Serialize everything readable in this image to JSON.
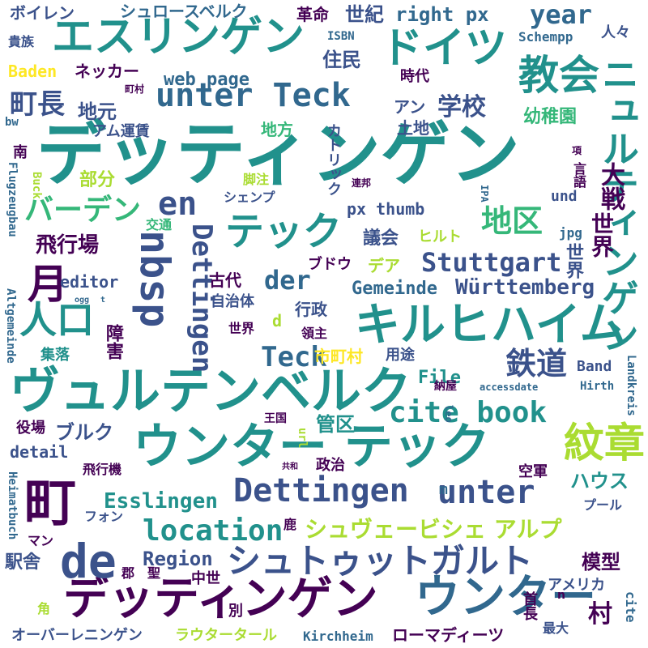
{
  "palette": {
    "deep": "#440154",
    "navy": "#3b528b",
    "blue": "#31688e",
    "teal": "#21918c",
    "green": "#35b779",
    "lime": "#5ec962",
    "yellow": "#aadc32",
    "gold": "#fde725",
    "indigo": "#472d7b"
  },
  "words": [
    {
      "text": "デッティンゲン",
      "color": "#21918c"
    },
    {
      "text": "ヴュルテンベルク",
      "color": "#21918c"
    },
    {
      "text": "エスリンゲン",
      "color": "#21918c"
    },
    {
      "text": "ドイツ",
      "color": "#21918c"
    },
    {
      "text": "教会",
      "color": "#21918c"
    },
    {
      "text": "unter Teck",
      "color": "#31688e"
    },
    {
      "text": "キルヒハイム",
      "color": "#21918c"
    },
    {
      "text": "ウンター テック",
      "color": "#21918c"
    },
    {
      "text": "デッティンゲン",
      "color": "#440154"
    },
    {
      "text": "ウンター",
      "color": "#31688e"
    },
    {
      "text": "町",
      "color": "#440154"
    },
    {
      "text": "de",
      "color": "#3b528b"
    },
    {
      "text": "Dettingen",
      "color": "#3b528b"
    },
    {
      "text": "unter",
      "color": "#3b528b"
    },
    {
      "text": "シュトゥットガルト",
      "color": "#3b528b"
    },
    {
      "text": "紋章",
      "color": "#aadc32"
    },
    {
      "text": "nbsp",
      "color": "#3b528b"
    },
    {
      "text": "ニュルティンゲン",
      "color": "#21918c"
    },
    {
      "text": "テック",
      "color": "#21918c"
    },
    {
      "text": "人口",
      "color": "#21918c"
    },
    {
      "text": "en",
      "color": "#3b528b"
    },
    {
      "text": "Stuttgart",
      "color": "#3b528b"
    },
    {
      "text": "cite book",
      "color": "#21918c"
    },
    {
      "text": "location",
      "color": "#21918c"
    },
    {
      "text": "シュヴェービシェ アルプ",
      "color": "#aadc32"
    },
    {
      "text": "Dettingen",
      "color": "#3b528b"
    },
    {
      "text": "鉄道",
      "color": "#3b528b"
    },
    {
      "text": "地区",
      "color": "#35b779"
    },
    {
      "text": "月",
      "color": "#440154"
    },
    {
      "text": "バーデン",
      "color": "#35b779"
    },
    {
      "text": "Teck",
      "color": "#31688e"
    },
    {
      "text": "der",
      "color": "#31688e"
    },
    {
      "text": "シュロースベルク",
      "color": "#31688e"
    },
    {
      "text": "住民",
      "color": "#3b528b"
    },
    {
      "text": "世紀",
      "color": "#3b528b"
    },
    {
      "text": "right px",
      "color": "#31688e"
    },
    {
      "text": "year",
      "color": "#31688e"
    },
    {
      "text": "Esslingen",
      "color": "#21918c"
    },
    {
      "text": "Gemeinde",
      "color": "#31688e"
    },
    {
      "text": "Württemberg",
      "color": "#3b528b"
    },
    {
      "text": "Region",
      "color": "#3b528b"
    },
    {
      "text": "web page",
      "color": "#31688e"
    },
    {
      "text": "町長",
      "color": "#3b528b"
    },
    {
      "text": "学校",
      "color": "#3b528b"
    },
    {
      "text": "世界",
      "color": "#440154"
    },
    {
      "text": "大戦",
      "color": "#440154"
    },
    {
      "text": "ボイレン",
      "color": "#3b528b"
    },
    {
      "text": "ネッカー",
      "color": "#440154"
    },
    {
      "text": "革命",
      "color": "#440154"
    },
    {
      "text": "ISBN",
      "color": "#31688e"
    },
    {
      "text": "Schempp",
      "color": "#31688e"
    },
    {
      "text": "人々",
      "color": "#3b528b"
    },
    {
      "text": "時代",
      "color": "#440154"
    },
    {
      "text": "貴族",
      "color": "#3b528b"
    },
    {
      "text": "Baden",
      "color": "#fde725"
    },
    {
      "text": "町村",
      "color": "#440154"
    },
    {
      "text": "地元",
      "color": "#3b528b"
    },
    {
      "text": "アム運賃",
      "color": "#3b528b"
    },
    {
      "text": "アン",
      "color": "#3b528b"
    },
    {
      "text": "幼稚園",
      "color": "#35b779"
    },
    {
      "text": "bw",
      "color": "#31688e"
    },
    {
      "text": "地方",
      "color": "#35b779"
    },
    {
      "text": "土地",
      "color": "#3b528b"
    },
    {
      "text": "南",
      "color": "#440154"
    },
    {
      "text": "カトリック",
      "color": "#3b528b"
    },
    {
      "text": "項",
      "color": "#440154"
    },
    {
      "text": "言語",
      "color": "#440154"
    },
    {
      "text": "部分",
      "color": "#aadc32"
    },
    {
      "text": "脚注",
      "color": "#aadc32"
    },
    {
      "text": "連邦",
      "color": "#440154"
    },
    {
      "text": "Flugzeugbau",
      "color": "#31688e"
    },
    {
      "text": "Buck",
      "color": "#aadc32"
    },
    {
      "text": "IPA",
      "color": "#31688e"
    },
    {
      "text": "シェンプ",
      "color": "#3b528b"
    },
    {
      "text": "px thumb",
      "color": "#3b528b"
    },
    {
      "text": "und",
      "color": "#3b528b"
    },
    {
      "text": "交通",
      "color": "#35b779"
    },
    {
      "text": "議会",
      "color": "#3b528b"
    },
    {
      "text": "ヒルト",
      "color": "#aadc32"
    },
    {
      "text": "jpg",
      "color": "#31688e"
    },
    {
      "text": "飛行場",
      "color": "#440154"
    },
    {
      "text": "デア",
      "color": "#aadc32"
    },
    {
      "text": "ブドウ",
      "color": "#440154"
    },
    {
      "text": "世界",
      "color": "#3b528b"
    },
    {
      "text": "editor",
      "color": "#3b528b"
    },
    {
      "text": "古代",
      "color": "#440154"
    },
    {
      "text": "自治体",
      "color": "#3b528b"
    },
    {
      "text": "Altgemeinde",
      "color": "#31688e"
    },
    {
      "text": "ogg",
      "color": "#31688e"
    },
    {
      "text": "t",
      "color": "#31688e"
    },
    {
      "text": "行政",
      "color": "#3b528b"
    },
    {
      "text": "d",
      "color": "#aadc32"
    },
    {
      "text": "世界",
      "color": "#440154"
    },
    {
      "text": "領主",
      "color": "#440154"
    },
    {
      "text": "障害",
      "color": "#440154"
    },
    {
      "text": "集落",
      "color": "#21918c"
    },
    {
      "text": "市町村",
      "color": "#fde725"
    },
    {
      "text": "用途",
      "color": "#3b528b"
    },
    {
      "text": "File",
      "color": "#21918c"
    },
    {
      "text": "Band",
      "color": "#3b528b"
    },
    {
      "text": "納屋",
      "color": "#440154"
    },
    {
      "text": "accessdate",
      "color": "#31688e"
    },
    {
      "text": "Hirth",
      "color": "#31688e"
    },
    {
      "text": "Landkreis",
      "color": "#31688e"
    },
    {
      "text": "役場",
      "color": "#440154"
    },
    {
      "text": "ブルク",
      "color": "#3b528b"
    },
    {
      "text": "王国",
      "color": "#440154"
    },
    {
      "text": "leo",
      "color": "#31688e"
    },
    {
      "text": "管区",
      "color": "#21918c"
    },
    {
      "text": "detail",
      "color": "#3b528b"
    },
    {
      "text": "url",
      "color": "#aadc32"
    },
    {
      "text": "飛行機",
      "color": "#440154"
    },
    {
      "text": "共和",
      "color": "#440154"
    },
    {
      "text": "政治",
      "color": "#440154"
    },
    {
      "text": "空軍",
      "color": "#440154"
    },
    {
      "text": "Heimatbuch",
      "color": "#31688e"
    },
    {
      "text": "フォン",
      "color": "#3b528b"
    },
    {
      "text": "m",
      "color": "#31688e"
    },
    {
      "text": "ハウス",
      "color": "#21918c"
    },
    {
      "text": "プール",
      "color": "#3b528b"
    },
    {
      "text": "マン",
      "color": "#440154"
    },
    {
      "text": "鹿",
      "color": "#440154"
    },
    {
      "text": "駅舎",
      "color": "#3b528b"
    },
    {
      "text": "模型",
      "color": "#440154"
    },
    {
      "text": "郡",
      "color": "#440154"
    },
    {
      "text": "聖",
      "color": "#440154"
    },
    {
      "text": "中世",
      "color": "#440154"
    },
    {
      "text": "アメリカ",
      "color": "#3b528b"
    },
    {
      "text": "角",
      "color": "#aadc32"
    },
    {
      "text": "別",
      "color": "#440154"
    },
    {
      "text": "首長",
      "color": "#440154"
    },
    {
      "text": "n",
      "color": "#440154"
    },
    {
      "text": "村",
      "color": "#440154"
    },
    {
      "text": "cite",
      "color": "#31688e"
    },
    {
      "text": "最大",
      "color": "#3b528b"
    },
    {
      "text": "オーバーレニンゲン",
      "color": "#3b528b"
    },
    {
      "text": "ラウタータール",
      "color": "#aadc32"
    },
    {
      "text": "Kirchheim",
      "color": "#31688e"
    },
    {
      "text": "ローマディーツ",
      "color": "#440154"
    }
  ]
}
